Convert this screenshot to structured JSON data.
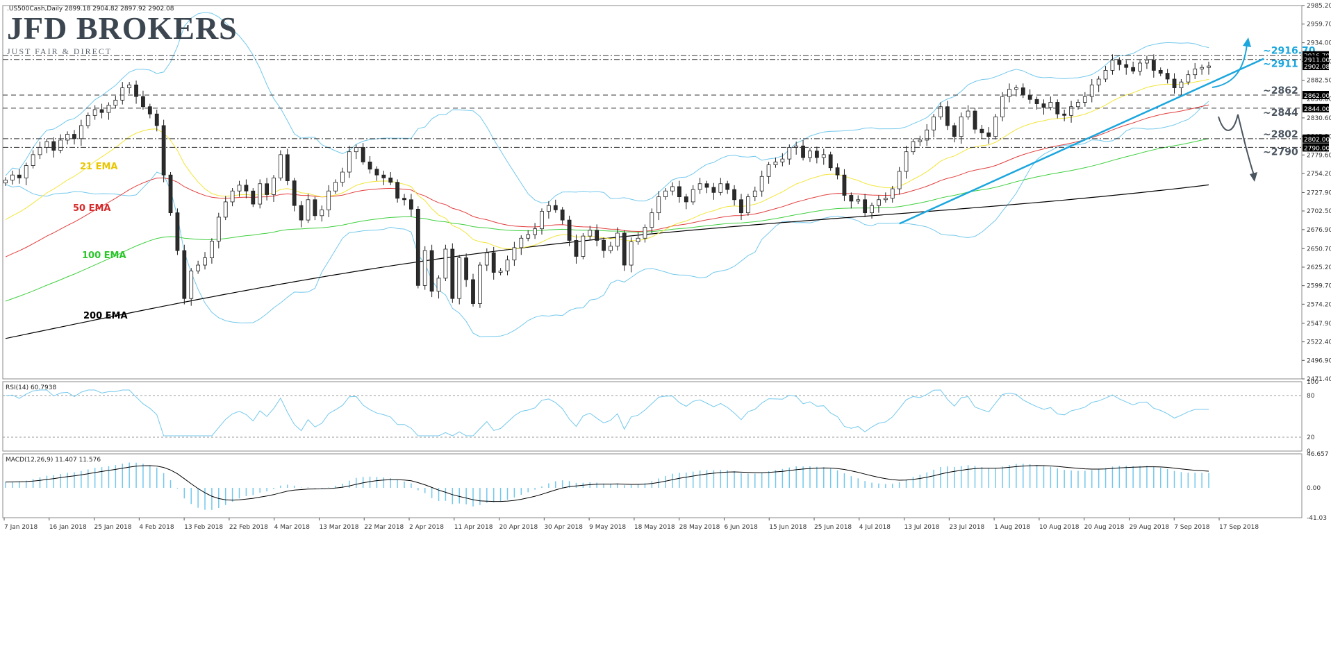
{
  "header": {
    "symbol": ".US500Cash,Daily",
    "ohlc": "2899.18 2904.82 2897.92 2902.08"
  },
  "brand": {
    "name": "JFD BROKERS",
    "tagline": "JUST FAIR & DIRECT"
  },
  "indicators": {
    "rsi_label": "RSI(14) 60.7938",
    "macd_label": "MACD(12,26,9) 11.407 11.576"
  },
  "colors": {
    "bull": "#ffffff",
    "bear": "#2b2b2b",
    "candle_outline": "#1f1f1f",
    "ema21": "#f2e53a",
    "ema50": "#e23d3d",
    "ema100": "#3fcf3f",
    "ema200": "#000000",
    "bollinger": "#73c8ec",
    "trend": "#1ba6dd",
    "annotation_blue": "#1ba6dd",
    "annotation_gray": "#4a5560",
    "label_ema21": "#e9c500",
    "label_ema50": "#d42b2b",
    "label_ema100": "#29c629"
  },
  "chart_data": {
    "type": "candlestick",
    "title": ".US500Cash,Daily",
    "y_range": [
      2471.4,
      2985.2
    ],
    "y_ticks": [
      "2985.20",
      "2959.70",
      "2934.00",
      "2908.30",
      "2882.50",
      "2856.80",
      "2830.60",
      "2805.30",
      "2779.60",
      "2754.20",
      "2727.90",
      "2702.50",
      "2676.90",
      "2650.70",
      "2625.20",
      "2599.70",
      "2574.20",
      "2547.90",
      "2522.40",
      "2496.90",
      "2471.40"
    ],
    "x_ticks": [
      "7 Jan 2018",
      "16 Jan 2018",
      "25 Jan 2018",
      "4 Feb 2018",
      "13 Feb 2018",
      "22 Feb 2018",
      "4 Mar 2018",
      "13 Mar 2018",
      "22 Mar 2018",
      "2 Apr 2018",
      "11 Apr 2018",
      "20 Apr 2018",
      "30 Apr 2018",
      "9 May 2018",
      "18 May 2018",
      "28 May 2018",
      "6 Jun 2018",
      "15 Jun 2018",
      "25 Jun 2018",
      "4 Jul 2018",
      "13 Jul 2018",
      "23 Jul 2018",
      "1 Aug 2018",
      "10 Aug 2018",
      "20 Aug 2018",
      "29 Aug 2018",
      "7 Sep 2018",
      "17 Sep 2018"
    ],
    "closes": [
      2745,
      2752,
      2748,
      2765,
      2780,
      2790,
      2798,
      2786,
      2800,
      2808,
      2802,
      2820,
      2834,
      2842,
      2838,
      2848,
      2855,
      2872,
      2876,
      2860,
      2846,
      2836,
      2820,
      2752,
      2700,
      2648,
      2582,
      2620,
      2628,
      2638,
      2661,
      2694,
      2715,
      2730,
      2738,
      2730,
      2712,
      2740,
      2725,
      2748,
      2780,
      2744,
      2710,
      2690,
      2718,
      2696,
      2704,
      2730,
      2742,
      2756,
      2784,
      2790,
      2770,
      2760,
      2752,
      2748,
      2742,
      2720,
      2718,
      2705,
      2600,
      2648,
      2592,
      2610,
      2650,
      2582,
      2638,
      2608,
      2575,
      2628,
      2645,
      2618,
      2620,
      2635,
      2652,
      2665,
      2670,
      2678,
      2702,
      2710,
      2704,
      2690,
      2662,
      2640,
      2668,
      2676,
      2662,
      2648,
      2654,
      2672,
      2628,
      2660,
      2665,
      2680,
      2700,
      2722,
      2730,
      2736,
      2722,
      2715,
      2732,
      2740,
      2735,
      2728,
      2740,
      2732,
      2718,
      2700,
      2722,
      2730,
      2750,
      2766,
      2770,
      2774,
      2790,
      2792,
      2776,
      2785,
      2776,
      2780,
      2762,
      2752,
      2724,
      2716,
      2718,
      2700,
      2710,
      2718,
      2720,
      2733,
      2757,
      2784,
      2798,
      2800,
      2814,
      2832,
      2846,
      2820,
      2805,
      2832,
      2840,
      2815,
      2810,
      2805,
      2832,
      2860,
      2870,
      2872,
      2862,
      2856,
      2850,
      2845,
      2852,
      2836,
      2834,
      2846,
      2852,
      2860,
      2876,
      2884,
      2896,
      2910,
      2904,
      2900,
      2895,
      2906,
      2910,
      2896,
      2892,
      2884,
      2872,
      2880,
      2890,
      2898,
      2900,
      2902
    ],
    "series": [
      {
        "name": "21 EMA",
        "label": "21 EMA"
      },
      {
        "name": "50 EMA",
        "label": "50 EMA"
      },
      {
        "name": "100 EMA",
        "label": "100 EMA"
      },
      {
        "name": "200 EMA",
        "label": "200 EMA"
      }
    ],
    "levels": [
      {
        "value": 2916.7,
        "label": "~2916.70",
        "tag": "2916.70",
        "style": "dashdot",
        "color": "blue"
      },
      {
        "value": 2911.0,
        "label": "~2911",
        "tag": "2911.00",
        "style": "dashdot",
        "color": "blue"
      },
      {
        "value": 2862.0,
        "label": "~2862",
        "tag": "2862.00",
        "style": "dashed",
        "color": "gray"
      },
      {
        "value": 2844.0,
        "label": "~2844",
        "tag": "2844.00",
        "style": "dashed",
        "color": "gray"
      },
      {
        "value": 2802.0,
        "label": "~2802",
        "tag": "2802.00",
        "style": "dashdot",
        "color": "gray"
      },
      {
        "value": 2790.0,
        "label": "~2790",
        "tag": "2790.00",
        "style": "dashdot",
        "color": "gray"
      }
    ],
    "current_price_tag": "2902.08",
    "trendline": {
      "from_index": 130,
      "from_value": 2685,
      "to_index": 183,
      "to_value": 2912
    },
    "rsi": {
      "range": [
        0,
        100
      ],
      "ticks": [
        "100",
        "80",
        "20",
        "0"
      ],
      "levels": [
        80,
        20
      ]
    },
    "macd": {
      "range": [
        -41.03,
        46.657
      ],
      "ticks": [
        "46.657",
        "0.00",
        "-41.03"
      ]
    }
  }
}
